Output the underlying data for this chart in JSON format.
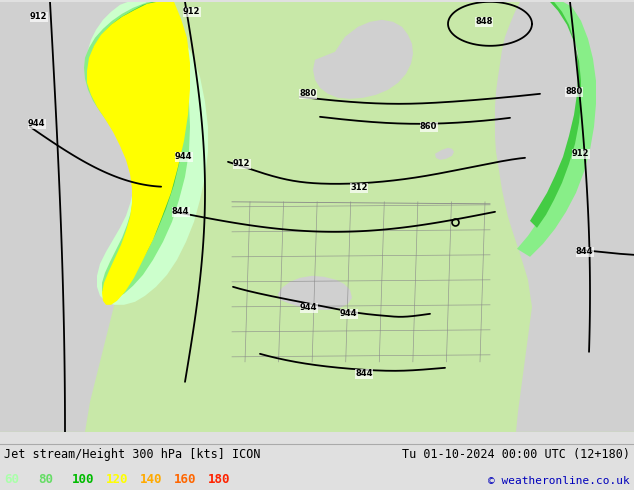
{
  "title_left": "Jet stream/Height 300 hPa [kts] ICON",
  "title_right": "Tu 01-10-2024 00:00 UTC (12+180)",
  "copyright": "© weatheronline.co.uk",
  "legend_values": [
    "60",
    "80",
    "100",
    "120",
    "140",
    "160",
    "180"
  ],
  "legend_colors": [
    "#aaffaa",
    "#66dd66",
    "#00bb00",
    "#ffff00",
    "#ffaa00",
    "#ff6600",
    "#ff2200"
  ],
  "bg_color": "#e0e0e0",
  "land_color": "#c8e8a8",
  "ocean_color": "#d0d0d0",
  "jet_colors": {
    "60": "#ccffcc",
    "80": "#88ee88",
    "100": "#44cc44",
    "120": "#ffff00",
    "140": "#ffaa00",
    "160": "#ff6600",
    "180": "#ff2200"
  },
  "contour_lw": 1.3,
  "title_fontsize": 8.5,
  "legend_fontsize": 9.0,
  "copyright_fontsize": 8.0
}
